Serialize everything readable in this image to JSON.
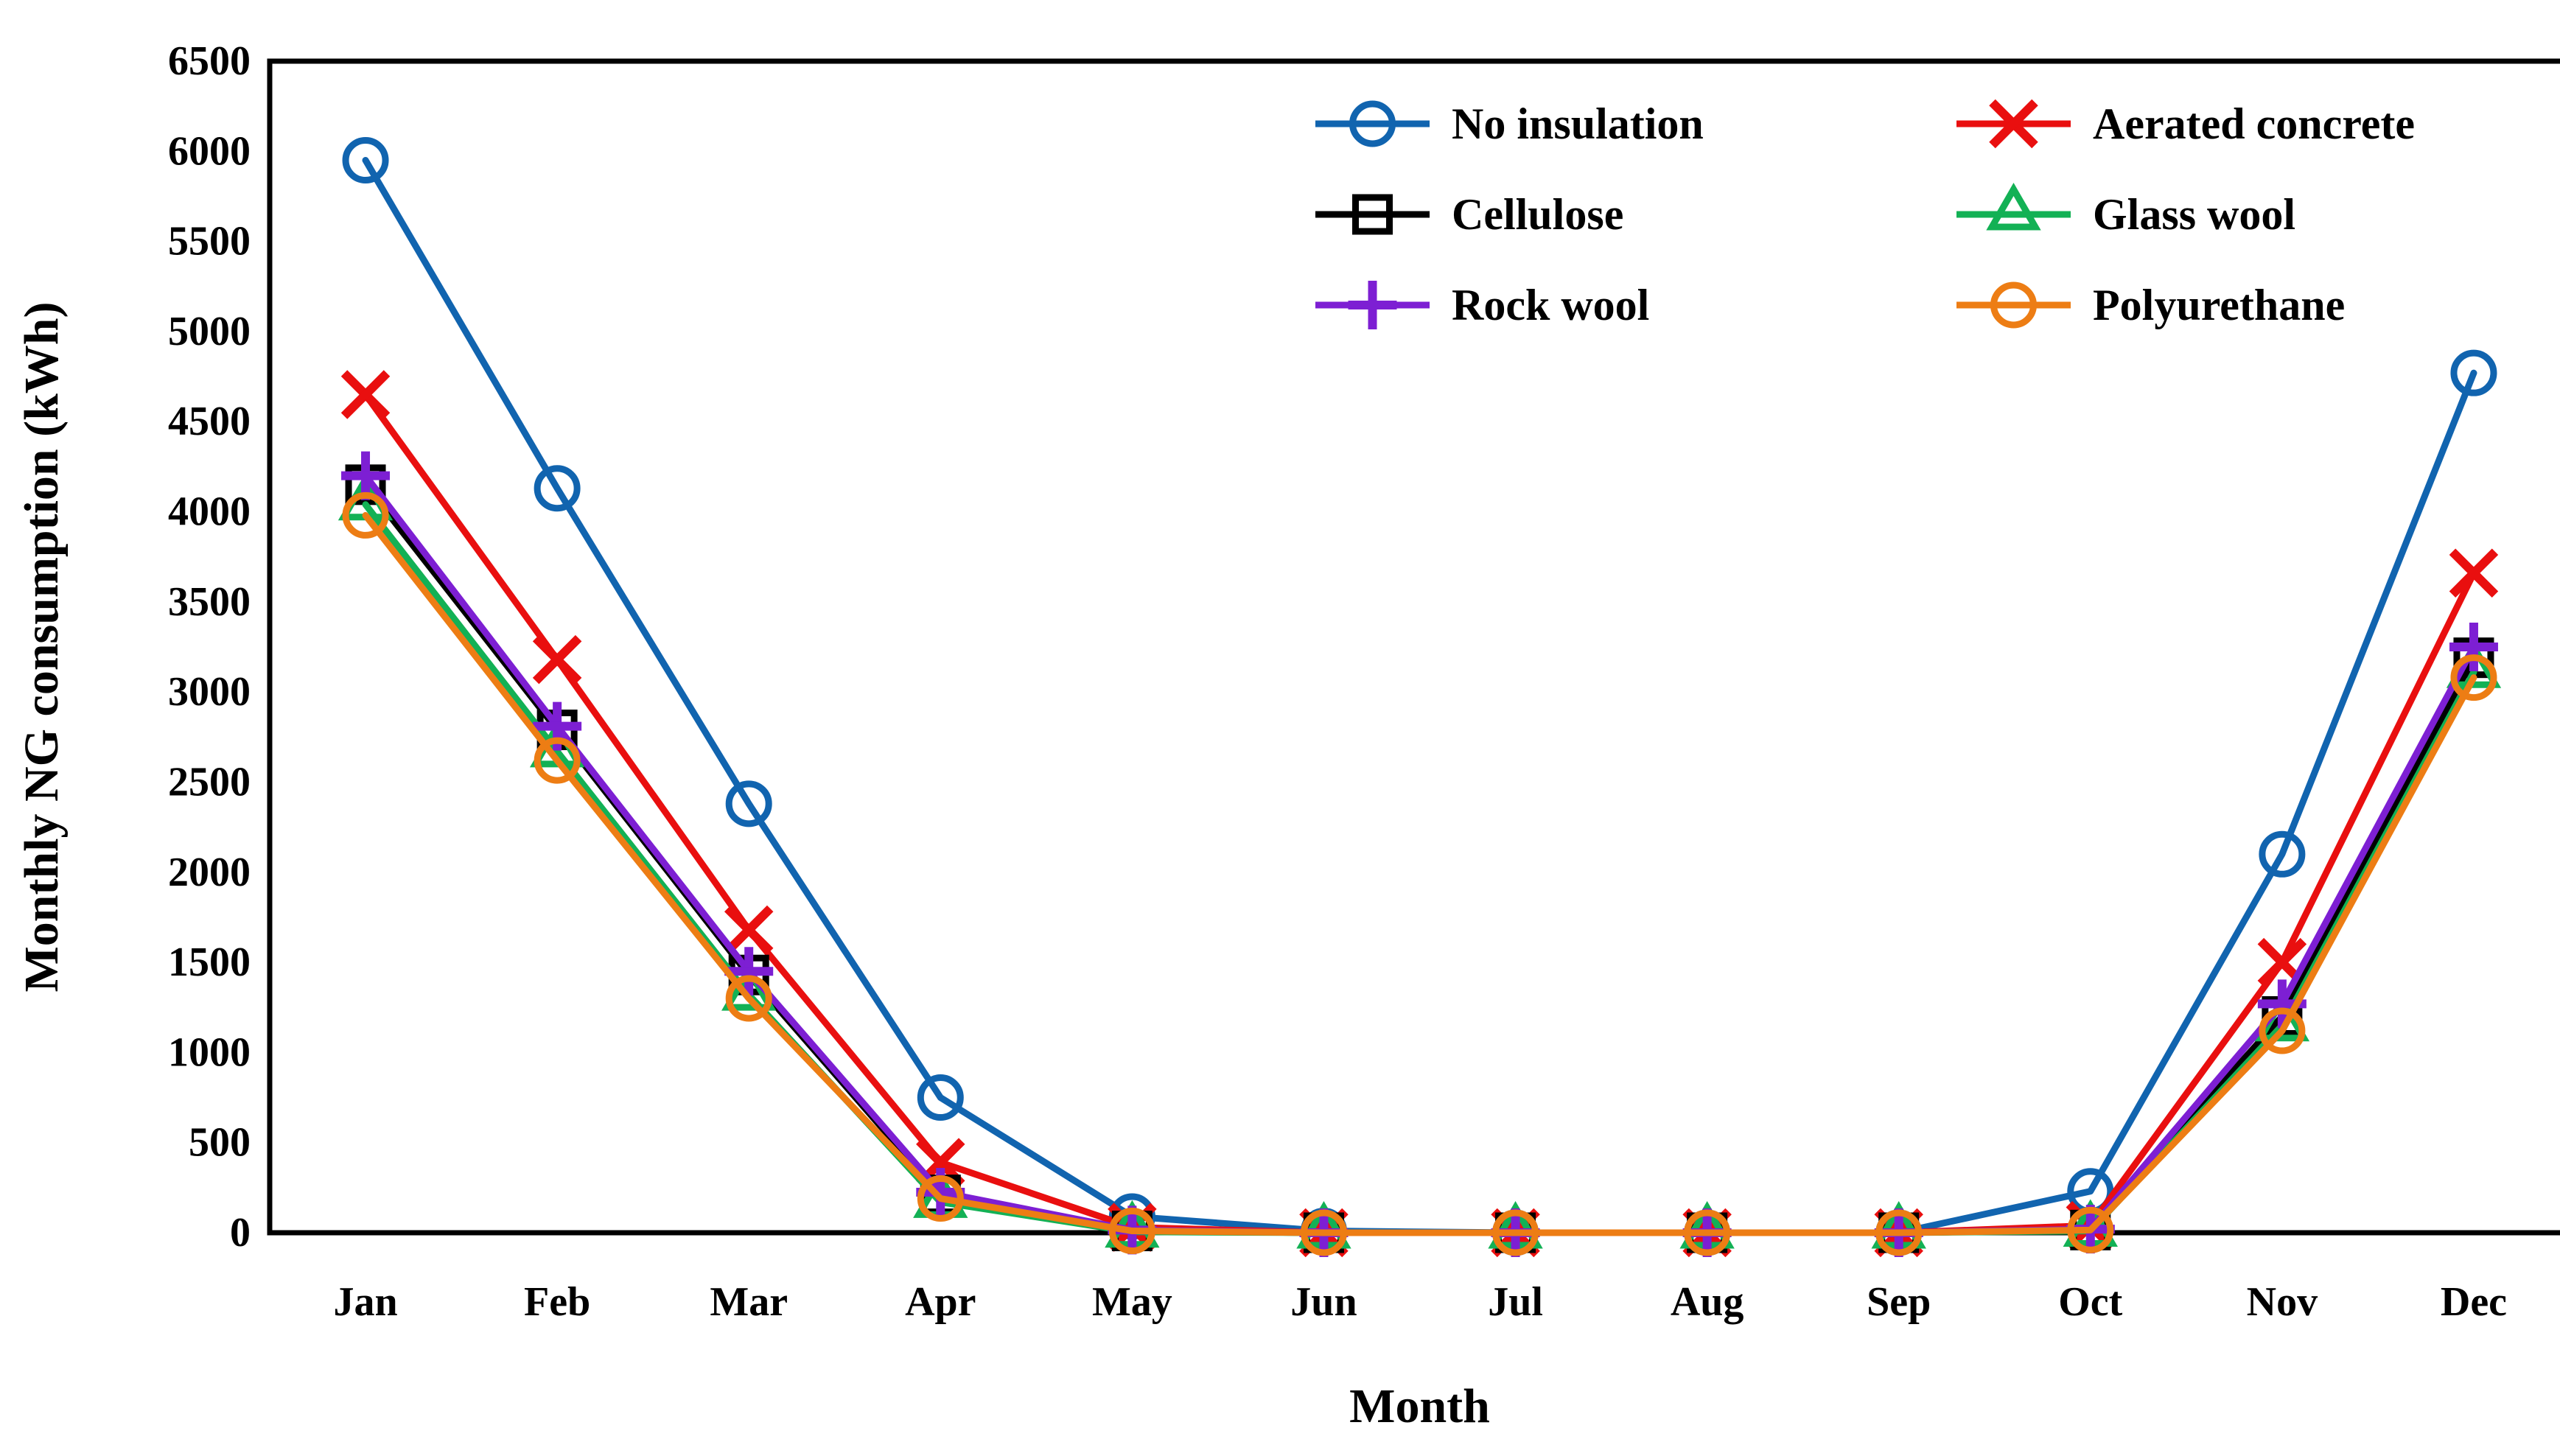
{
  "figure": {
    "background": "#ffffff"
  },
  "chart_data": {
    "type": "line",
    "title": "",
    "xlabel": "Month",
    "ylabel": "Monthly NG consumption (kWh)",
    "categories": [
      "Jan",
      "Feb",
      "Mar",
      "Apr",
      "May",
      "Jun",
      "Jul",
      "Aug",
      "Sep",
      "Oct",
      "Nov",
      "Dec"
    ],
    "ylim": [
      0,
      6500
    ],
    "yticks": [
      0,
      500,
      1000,
      1500,
      2000,
      2500,
      3000,
      3500,
      4000,
      4500,
      5000,
      5500,
      6000,
      6500
    ],
    "grid": false,
    "legend_position": "top-right-inside",
    "legend_layout": [
      [
        "No insulation",
        "Aerated concrete"
      ],
      [
        "Cellulose",
        "Glass wool"
      ],
      [
        "Rock wool",
        "Polyurethane"
      ]
    ],
    "series": [
      {
        "name": "No insulation",
        "color": "#1164AF",
        "marker": "circle",
        "values": [
          5950,
          4130,
          2380,
          750,
          90,
          10,
          0,
          0,
          0,
          230,
          2100,
          4770
        ]
      },
      {
        "name": "Aerated concrete",
        "color": "#E90F0F",
        "marker": "x",
        "values": [
          4650,
          3180,
          1680,
          390,
          30,
          0,
          0,
          0,
          0,
          40,
          1500,
          3660
        ]
      },
      {
        "name": "Cellulose",
        "color": "#000000",
        "marker": "square",
        "values": [
          4150,
          2790,
          1430,
          210,
          10,
          0,
          0,
          0,
          0,
          15,
          1200,
          3190
        ]
      },
      {
        "name": "Glass wool",
        "color": "#13B155",
        "marker": "triangle",
        "values": [
          4040,
          2670,
          1320,
          170,
          5,
          0,
          0,
          0,
          0,
          10,
          1150,
          3110
        ]
      },
      {
        "name": "Rock wool",
        "color": "#7D1FD3",
        "marker": "plus",
        "values": [
          4200,
          2810,
          1450,
          225,
          15,
          0,
          0,
          0,
          0,
          20,
          1270,
          3250
        ]
      },
      {
        "name": "Polyurethane",
        "color": "#ED7D14",
        "marker": "circle",
        "values": [
          3980,
          2620,
          1300,
          190,
          10,
          0,
          0,
          0,
          0,
          15,
          1120,
          3080
        ]
      }
    ]
  }
}
